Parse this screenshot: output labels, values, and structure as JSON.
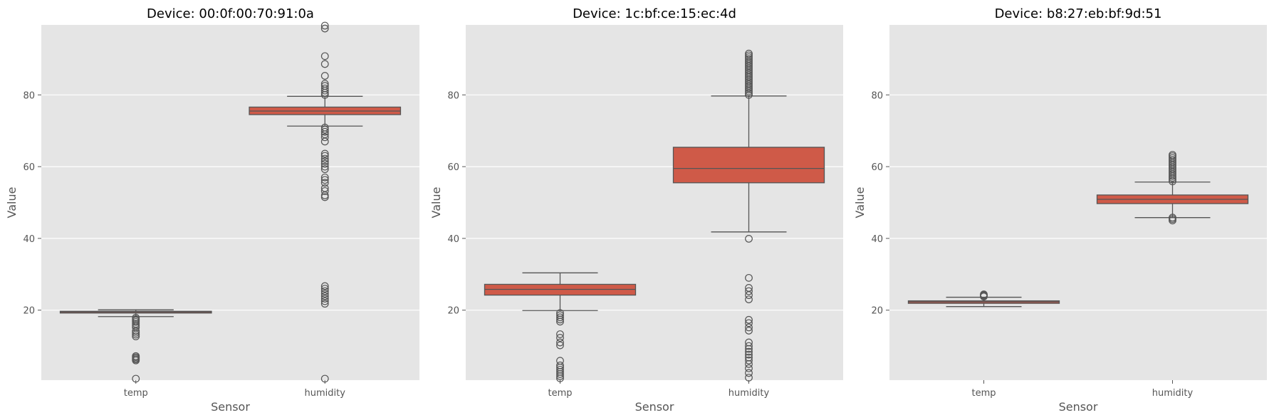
{
  "colors": {
    "panel_bg": "#e5e5e5",
    "grid": "#ffffff",
    "box_fill": "#cf5a48",
    "line": "#555555",
    "text": "#555555"
  },
  "chart_data": [
    {
      "type": "box",
      "title": "Device: 00:0f:00:70:91:0a",
      "xlabel": "Sensor",
      "ylabel": "Value",
      "ylim": [
        0.5,
        99.5
      ],
      "yticks": [
        20,
        40,
        60,
        80
      ],
      "grid": true,
      "categories": [
        "temp",
        "humidity"
      ],
      "boxes": [
        {
          "category": "temp",
          "q1": 19.2,
          "median": 19.5,
          "q3": 19.7,
          "whisker_low": 18.2,
          "whisker_high": 20.1,
          "outliers": [
            0.9,
            6.0,
            6.3,
            6.6,
            6.9,
            7.2,
            12.7,
            13.2,
            13.7,
            14.2,
            15.2,
            15.7,
            16.2,
            16.7,
            17.1,
            17.5,
            17.9
          ]
        },
        {
          "category": "humidity",
          "q1": 74.5,
          "median": 75.5,
          "q3": 76.6,
          "whisker_low": 71.3,
          "whisker_high": 79.6,
          "outliers": [
            0.9,
            21.8,
            22.5,
            23.2,
            23.9,
            24.6,
            25.3,
            26.0,
            26.7,
            51.5,
            52.0,
            53.2,
            54.0,
            55.5,
            56.3,
            57.0,
            59.3,
            60.0,
            60.8,
            61.5,
            62.2,
            63.0,
            63.6,
            67.0,
            68.2,
            69.0,
            69.7,
            70.3,
            70.9,
            80.0,
            80.6,
            81.2,
            81.8,
            82.5,
            83.1,
            85.3,
            88.6,
            90.8,
            98.5,
            99.3
          ]
        }
      ]
    },
    {
      "type": "box",
      "title": "Device: 1c:bf:ce:15:ec:4d",
      "xlabel": "Sensor",
      "ylabel": "Value",
      "ylim": [
        0.5,
        99.5
      ],
      "yticks": [
        20,
        40,
        60,
        80
      ],
      "grid": true,
      "categories": [
        "temp",
        "humidity"
      ],
      "boxes": [
        {
          "category": "temp",
          "q1": 24.2,
          "median": 25.8,
          "q3": 27.2,
          "whisker_low": 19.9,
          "whisker_high": 30.4,
          "outliers": [
            1.0,
            1.6,
            2.2,
            2.8,
            3.4,
            4.0,
            4.6,
            5.9,
            10.2,
            11.0,
            12.3,
            13.3,
            16.8,
            17.4,
            18.0,
            18.6,
            19.2
          ]
        },
        {
          "category": "humidity",
          "q1": 55.5,
          "median": 59.5,
          "q3": 65.4,
          "whisker_low": 41.8,
          "whisker_high": 79.7,
          "outliers": [
            1.2,
            2.5,
            3.8,
            5.0,
            6.0,
            6.8,
            7.6,
            8.4,
            9.2,
            10.0,
            11.0,
            14.3,
            15.2,
            16.4,
            17.3,
            23.0,
            24.2,
            25.3,
            26.2,
            29.0,
            39.9,
            80.0,
            80.5,
            81.0,
            81.5,
            82.0,
            82.5,
            83.0,
            83.5,
            84.0,
            84.5,
            85.0,
            85.5,
            86.0,
            86.5,
            87.0,
            87.5,
            88.0,
            88.5,
            89.0,
            89.5,
            90.0,
            90.5,
            91.0,
            91.5
          ]
        }
      ]
    },
    {
      "type": "box",
      "title": "Device: b8:27:eb:bf:9d:51",
      "xlabel": "Sensor",
      "ylabel": "Value",
      "ylim": [
        0.5,
        99.5
      ],
      "yticks": [
        20,
        40,
        60,
        80
      ],
      "grid": true,
      "categories": [
        "temp",
        "humidity"
      ],
      "boxes": [
        {
          "category": "temp",
          "q1": 21.9,
          "median": 22.3,
          "q3": 22.6,
          "whisker_low": 21.0,
          "whisker_high": 23.6,
          "outliers": [
            23.8,
            24.0,
            24.2,
            24.4
          ]
        },
        {
          "category": "humidity",
          "q1": 49.7,
          "median": 50.9,
          "q3": 52.1,
          "whisker_low": 45.8,
          "whisker_high": 55.7,
          "outliers": [
            45.0,
            45.4,
            45.8,
            55.9,
            56.4,
            56.9,
            57.4,
            57.9,
            58.4,
            58.9,
            59.4,
            59.9,
            60.4,
            60.9,
            61.4,
            61.9,
            62.4,
            62.9,
            63.3
          ]
        }
      ]
    }
  ]
}
